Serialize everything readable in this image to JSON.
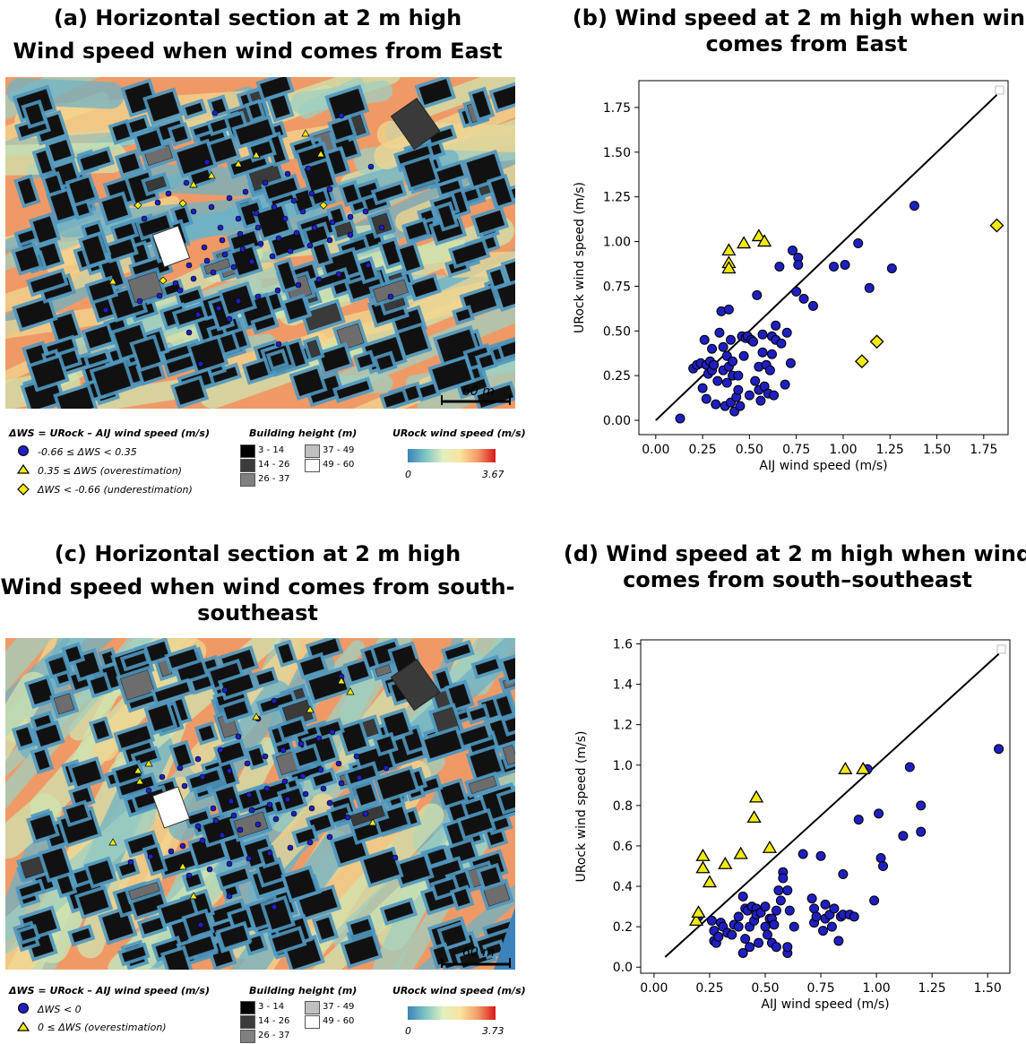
{
  "panels": {
    "a": {
      "title_line1": "(a) Horizontal section at 2 m high",
      "title_line2": "Wind speed when wind comes from East"
    },
    "b": {
      "title_line1": "(b) Wind speed at 2 m high when wind",
      "title_line2": "comes from East"
    },
    "c": {
      "title_line1": "(c) Horizontal section at 2 m high",
      "title_line2": "Wind speed when wind comes from south-",
      "title_line3": "southeast"
    },
    "d": {
      "title_line1": "(d) Wind speed at 2 m high when wind",
      "title_line2": "comes from south–southeast"
    }
  },
  "map_legend_top": {
    "dws_title": "ΔWS = URock – AIJ wind speed (m/s)",
    "dws_items": [
      "-0.66 ≤ ΔWS < 0.35",
      "0.35 ≤ ΔWS (overestimation)",
      "ΔWS < -0.66 (underestimation)"
    ],
    "height_title": "Building height (m)",
    "height_items": [
      "3 - 14",
      "14 - 26",
      "26 - 37",
      "37 - 49",
      "49 - 60"
    ],
    "urock_title": "URock wind speed (m/s)",
    "urock_min": "0",
    "urock_max": "3.67",
    "scale_label": "60 m"
  },
  "map_legend_bottom": {
    "dws_title": "ΔWS = URock – AIJ wind speed (m/s)",
    "dws_items": [
      "ΔWS < 0",
      "0 ≤ ΔWS (overestimation)"
    ],
    "height_title": "Building height (m)",
    "height_items": [
      "3 - 14",
      "14 - 26",
      "26 - 37",
      "37 - 49",
      "49 - 60"
    ],
    "urock_title": "URock wind speed (m/s)",
    "urock_min": "0",
    "urock_max": "3.73",
    "scale_label": "60 m"
  },
  "colors": {
    "circle": "#1f1fbf",
    "triangle": "#f2ea10",
    "diamond": "#f2ea10",
    "map_hot": "#ef8a5a",
    "map_cold": "#3b83b8"
  },
  "chart_data": [
    {
      "type": "scatter",
      "panel": "b",
      "xlabel": "AIJ  wind speed (m/s)",
      "ylabel": "URock  wind speed (m/s)",
      "xlim": [
        -0.09,
        1.88
      ],
      "ylim": [
        -0.08,
        1.9
      ],
      "xticks": [
        "0.00",
        "0.25",
        "0.50",
        "0.75",
        "1.00",
        "1.25",
        "1.50",
        "1.75"
      ],
      "yticks": [
        "0.00",
        "0.25",
        "0.50",
        "0.75",
        "1.00",
        "1.25",
        "1.50",
        "1.75"
      ],
      "line": {
        "x": [
          0,
          1.82
        ],
        "y": [
          0,
          1.82
        ]
      },
      "series": [
        {
          "marker": "circle",
          "points": [
            [
              0.13,
              0.01
            ],
            [
              0.2,
              0.29
            ],
            [
              0.22,
              0.31
            ],
            [
              0.24,
              0.32
            ],
            [
              0.25,
              0.18
            ],
            [
              0.26,
              0.45
            ],
            [
              0.27,
              0.31
            ],
            [
              0.27,
              0.12
            ],
            [
              0.28,
              0.26
            ],
            [
              0.29,
              0.33
            ],
            [
              0.3,
              0.28
            ],
            [
              0.3,
              0.4
            ],
            [
              0.31,
              0.31
            ],
            [
              0.32,
              0.09
            ],
            [
              0.33,
              0.22
            ],
            [
              0.34,
              0.49
            ],
            [
              0.35,
              0.61
            ],
            [
              0.36,
              0.41
            ],
            [
              0.36,
              0.28
            ],
            [
              0.37,
              0.08
            ],
            [
              0.38,
              0.36
            ],
            [
              0.38,
              0.21
            ],
            [
              0.39,
              0.62
            ],
            [
              0.39,
              0.3
            ],
            [
              0.4,
              0.45
            ],
            [
              0.4,
              0.1
            ],
            [
              0.41,
              0.33
            ],
            [
              0.41,
              0.25
            ],
            [
              0.42,
              0.05
            ],
            [
              0.43,
              0.13
            ],
            [
              0.44,
              0.25
            ],
            [
              0.44,
              0.17
            ],
            [
              0.45,
              0.08
            ],
            [
              0.46,
              0.47
            ],
            [
              0.47,
              0.36
            ],
            [
              0.48,
              0.46
            ],
            [
              0.49,
              0.47
            ],
            [
              0.5,
              0.14
            ],
            [
              0.51,
              0.45
            ],
            [
              0.52,
              0.44
            ],
            [
              0.53,
              0.22
            ],
            [
              0.54,
              0.7
            ],
            [
              0.55,
              0.3
            ],
            [
              0.55,
              0.17
            ],
            [
              0.56,
              0.11
            ],
            [
              0.57,
              0.48
            ],
            [
              0.57,
              0.38
            ],
            [
              0.58,
              0.19
            ],
            [
              0.59,
              0.31
            ],
            [
              0.6,
              0.15
            ],
            [
              0.61,
              0.28
            ],
            [
              0.62,
              0.37
            ],
            [
              0.62,
              0.47
            ],
            [
              0.63,
              0.14
            ],
            [
              0.64,
              0.45
            ],
            [
              0.64,
              0.53
            ],
            [
              0.66,
              0.86
            ],
            [
              0.67,
              0.43
            ],
            [
              0.69,
              0.2
            ],
            [
              0.7,
              0.49
            ],
            [
              0.72,
              0.32
            ],
            [
              0.73,
              0.95
            ],
            [
              0.75,
              0.72
            ],
            [
              0.76,
              0.91
            ],
            [
              0.76,
              0.87
            ],
            [
              0.79,
              0.68
            ],
            [
              0.84,
              0.64
            ],
            [
              0.95,
              0.86
            ],
            [
              1.01,
              0.87
            ],
            [
              1.08,
              0.99
            ],
            [
              1.14,
              0.74
            ],
            [
              1.26,
              0.85
            ],
            [
              1.38,
              1.2
            ]
          ]
        },
        {
          "marker": "triangle",
          "points": [
            [
              0.39,
              0.95
            ],
            [
              0.39,
              0.88
            ],
            [
              0.39,
              0.85
            ],
            [
              0.47,
              0.99
            ],
            [
              0.55,
              1.03
            ],
            [
              0.58,
              1.0
            ]
          ]
        },
        {
          "marker": "diamond",
          "points": [
            [
              1.1,
              0.33
            ],
            [
              1.18,
              0.44
            ],
            [
              1.82,
              1.09
            ]
          ]
        }
      ]
    },
    {
      "type": "scatter",
      "panel": "d",
      "xlabel": "AIJ  wind speed (m/s)",
      "ylabel": "URock  wind speed (m/s)",
      "xlim": [
        -0.06,
        1.6
      ],
      "ylim": [
        -0.03,
        1.62
      ],
      "xticks": [
        "0.00",
        "0.25",
        "0.50",
        "0.75",
        "1.00",
        "1.25",
        "1.50"
      ],
      "yticks": [
        "0.0",
        "0.2",
        "0.4",
        "0.6",
        "0.8",
        "1.0",
        "1.2",
        "1.4",
        "1.6"
      ],
      "line": {
        "x": [
          0.05,
          1.55
        ],
        "y": [
          0.05,
          1.55
        ]
      },
      "series": [
        {
          "marker": "circle",
          "points": [
            [
              0.2,
              0.25
            ],
            [
              0.26,
              0.23
            ],
            [
              0.27,
              0.13
            ],
            [
              0.27,
              0.18
            ],
            [
              0.28,
              0.12
            ],
            [
              0.29,
              0.15
            ],
            [
              0.3,
              0.22
            ],
            [
              0.31,
              0.2
            ],
            [
              0.33,
              0.17
            ],
            [
              0.35,
              0.16
            ],
            [
              0.36,
              0.21
            ],
            [
              0.38,
              0.2
            ],
            [
              0.38,
              0.25
            ],
            [
              0.4,
              0.07
            ],
            [
              0.4,
              0.35
            ],
            [
              0.41,
              0.14
            ],
            [
              0.41,
              0.29
            ],
            [
              0.42,
              0.28
            ],
            [
              0.43,
              0.2
            ],
            [
              0.43,
              0.1
            ],
            [
              0.44,
              0.3
            ],
            [
              0.45,
              0.23
            ],
            [
              0.46,
              0.29
            ],
            [
              0.46,
              0.26
            ],
            [
              0.47,
              0.12
            ],
            [
              0.48,
              0.27
            ],
            [
              0.5,
              0.3
            ],
            [
              0.5,
              0.2
            ],
            [
              0.51,
              0.16
            ],
            [
              0.52,
              0.24
            ],
            [
              0.53,
              0.12
            ],
            [
              0.53,
              0.24
            ],
            [
              0.54,
              0.21
            ],
            [
              0.55,
              0.1
            ],
            [
              0.55,
              0.28
            ],
            [
              0.56,
              0.38
            ],
            [
              0.57,
              0.33
            ],
            [
              0.58,
              0.47
            ],
            [
              0.58,
              0.44
            ],
            [
              0.6,
              0.07
            ],
            [
              0.6,
              0.38
            ],
            [
              0.61,
              0.28
            ],
            [
              0.6,
              0.1
            ],
            [
              0.63,
              0.2
            ],
            [
              0.67,
              0.56
            ],
            [
              0.71,
              0.34
            ],
            [
              0.72,
              0.29
            ],
            [
              0.72,
              0.22
            ],
            [
              0.73,
              0.25
            ],
            [
              0.75,
              0.55
            ],
            [
              0.76,
              0.18
            ],
            [
              0.77,
              0.24
            ],
            [
              0.77,
              0.31
            ],
            [
              0.79,
              0.26
            ],
            [
              0.8,
              0.2
            ],
            [
              0.81,
              0.29
            ],
            [
              0.83,
              0.13
            ],
            [
              0.84,
              0.25
            ],
            [
              0.85,
              0.26
            ],
            [
              0.85,
              0.46
            ],
            [
              0.88,
              0.26
            ],
            [
              0.9,
              0.25
            ],
            [
              0.92,
              0.73
            ],
            [
              0.96,
              0.98
            ],
            [
              0.99,
              0.33
            ],
            [
              1.01,
              0.76
            ],
            [
              1.02,
              0.54
            ],
            [
              1.03,
              0.5
            ],
            [
              1.12,
              0.65
            ],
            [
              1.15,
              0.99
            ],
            [
              1.2,
              0.8
            ],
            [
              1.2,
              0.67
            ],
            [
              1.55,
              1.08
            ]
          ]
        },
        {
          "marker": "triangle",
          "points": [
            [
              0.19,
              0.23
            ],
            [
              0.2,
              0.27
            ],
            [
              0.22,
              0.55
            ],
            [
              0.22,
              0.49
            ],
            [
              0.25,
              0.42
            ],
            [
              0.32,
              0.51
            ],
            [
              0.39,
              0.56
            ],
            [
              0.45,
              0.74
            ],
            [
              0.46,
              0.84
            ],
            [
              0.52,
              0.59
            ],
            [
              0.86,
              0.98
            ],
            [
              0.94,
              0.98
            ]
          ]
        }
      ]
    }
  ]
}
